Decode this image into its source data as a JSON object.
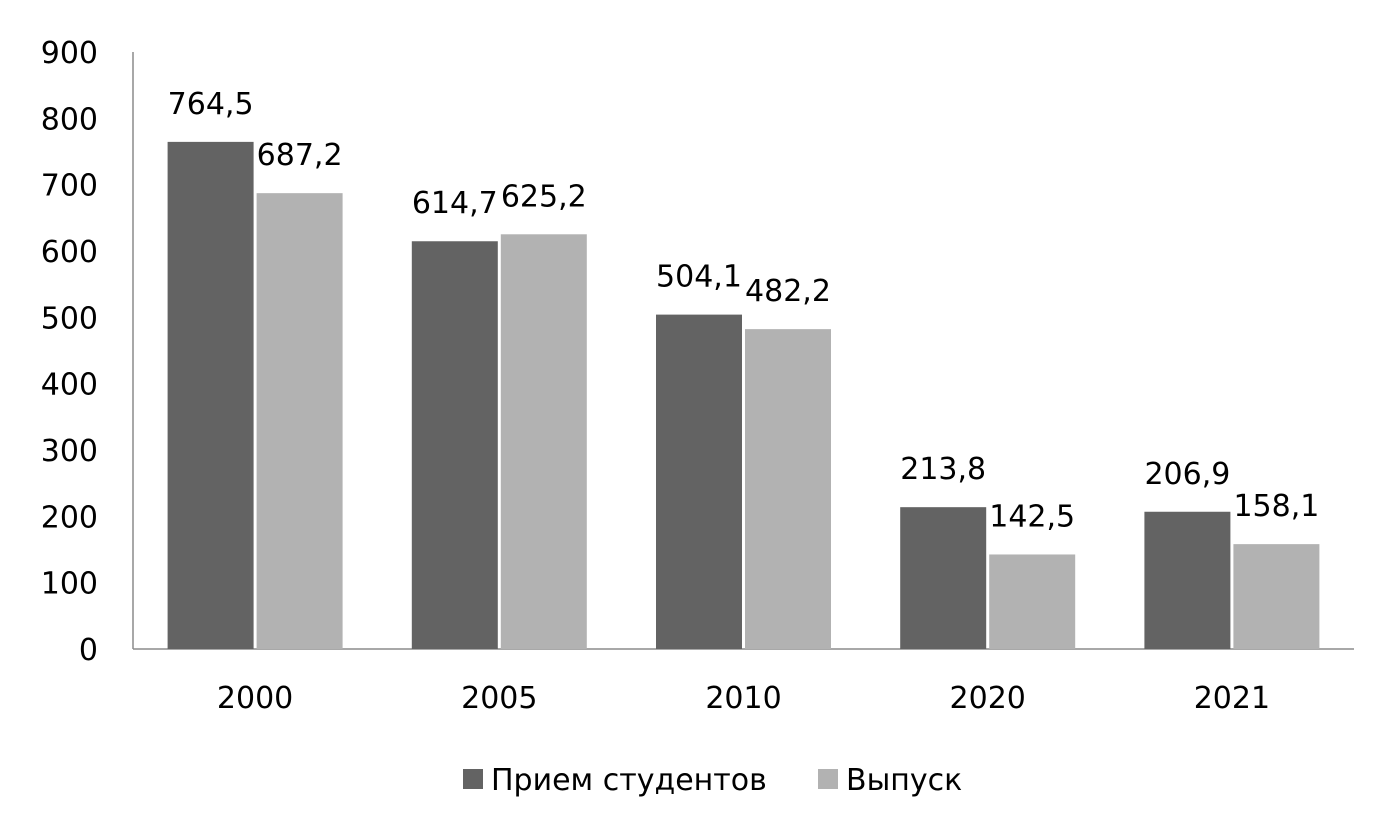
{
  "chart_data": {
    "type": "bar",
    "categories": [
      "2000",
      "2005",
      "2010",
      "2020",
      "2021"
    ],
    "series": [
      {
        "name": "Прием студентов",
        "values": [
          764.5,
          614.7,
          504.1,
          213.8,
          206.9
        ],
        "labels": [
          "764,5",
          "614,7",
          "504,1",
          "213,8",
          "206,9"
        ],
        "color": "#636363"
      },
      {
        "name": "Выпуск",
        "values": [
          687.2,
          625.2,
          482.2,
          142.5,
          158.1
        ],
        "labels": [
          "687,2",
          "625,2",
          "482,2",
          "142,5",
          "158,1"
        ],
        "color": "#b2b2b2"
      }
    ],
    "ylim": [
      0,
      900
    ],
    "yticks": [
      "0",
      "100",
      "200",
      "300",
      "400",
      "500",
      "600",
      "700",
      "800",
      "900"
    ],
    "title": "",
    "xlabel": "",
    "ylabel": "",
    "grid": false,
    "legend_position": "bottom"
  }
}
